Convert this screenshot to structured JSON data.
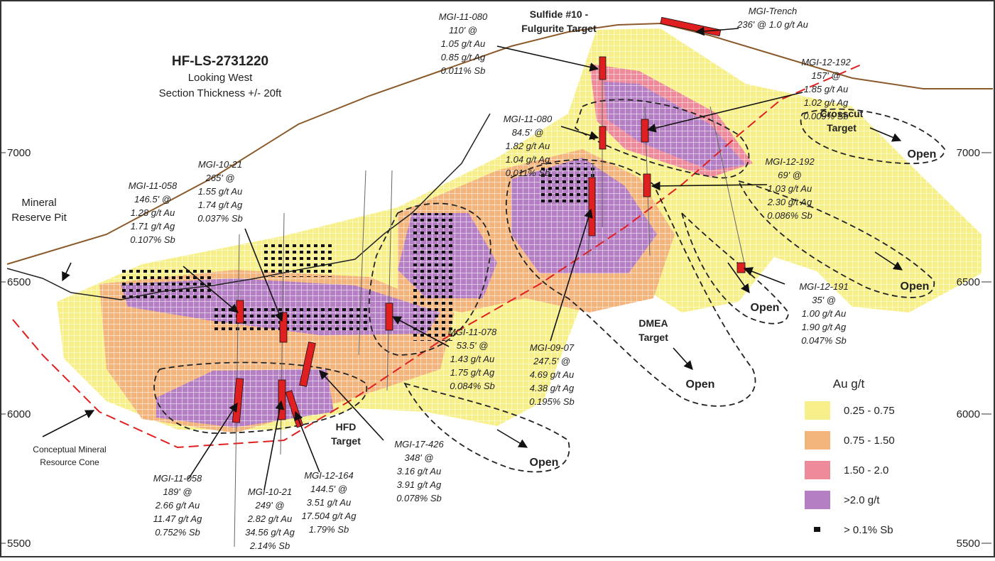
{
  "title": {
    "name": "HF-LS-2731220",
    "view": "Looking West",
    "thickness": "Section Thickness +/- 20ft"
  },
  "elevation_labels": {
    "left": [
      "7000",
      "6500",
      "6000",
      "5500"
    ],
    "right": [
      "7000",
      "6500",
      "6000",
      "5500"
    ]
  },
  "features": {
    "pit": [
      "Mineral",
      "Reserve Pit"
    ],
    "cone": [
      "Conceptual Mineral",
      "Resource Cone"
    ],
    "sulfide": [
      "Sulfide #10 -",
      "Fulgurite Target"
    ],
    "crosscut": [
      "Crosscut",
      "Target"
    ],
    "dmea": [
      "DMEA",
      "Target"
    ],
    "hfd": [
      "HFD",
      "Target"
    ]
  },
  "open_labels": [
    "Open",
    "Open",
    "Open",
    "Open",
    "Open"
  ],
  "intercepts": [
    {
      "name": "MGI-Trench",
      "lines": [
        "236' @ 1.0 g/t Au"
      ]
    },
    {
      "name": "MGI-11-080",
      "lines": [
        "110' @",
        "1.05 g/t Au",
        "0.85 g/t Ag",
        "0.011% Sb"
      ]
    },
    {
      "name": "MGI-12-192",
      "lines": [
        "157' @",
        "1.85 g/t Au",
        "1.02 g/t Ag",
        "0.009% Sb"
      ]
    },
    {
      "name": "MGI-11-080",
      "lines": [
        "84.5' @",
        "1.82 g/t Au",
        "1.04 g/t Ag",
        "0.011% Sb"
      ]
    },
    {
      "name": "MGI-12-192",
      "lines": [
        "69' @",
        "1.03 g/t Au",
        "2.30 g/t Ag",
        "0.086% Sb"
      ]
    },
    {
      "name": "MGI-10-21",
      "lines": [
        "265' @",
        "1.55 g/t Au",
        "1.74 g/t Ag",
        "0.037% Sb"
      ]
    },
    {
      "name": "MGI-11-058",
      "lines": [
        "146.5' @",
        "1.28 g/t Au",
        "1.71 g/t Ag",
        "0.107% Sb"
      ]
    },
    {
      "name": "MGI-11-078",
      "lines": [
        "53.5' @",
        "1.43 g/t Au",
        "1.75 g/t Ag",
        "0.084% Sb"
      ]
    },
    {
      "name": "MGI-09-07",
      "lines": [
        "247.5' @",
        "4.69 g/t Au",
        "4.38 g/t Ag",
        "0.195% Sb"
      ]
    },
    {
      "name": "MGI-12-191",
      "lines": [
        "35' @",
        "1.00 g/t Au",
        "1.90 g/t Ag",
        "0.047% Sb"
      ]
    },
    {
      "name": "MGI-17-426",
      "lines": [
        "348' @",
        "3.16 g/t Au",
        "3.91 g/t Ag",
        "0.078% Sb"
      ]
    },
    {
      "name": "MGI-11-058",
      "lines": [
        "189' @",
        "2.66 g/t Au",
        "11.47 g/t Ag",
        "0.752% Sb"
      ]
    },
    {
      "name": "MGI-10-21",
      "lines": [
        "249' @",
        "2.82 g/t Au",
        "34.56 g/t Ag",
        "2.14% Sb"
      ]
    },
    {
      "name": "MGI-12-164",
      "lines": [
        "144.5' @",
        "3.51 g/t Au",
        "17.504 g/t Ag",
        "1.79% Sb"
      ]
    }
  ],
  "legend": {
    "title": "Au g/t",
    "items": [
      "0.25 - 0.75",
      "0.75 - 1.50",
      "1.50 - 2.0",
      ">2.0 g/t",
      "> 0.1% Sb"
    ]
  }
}
